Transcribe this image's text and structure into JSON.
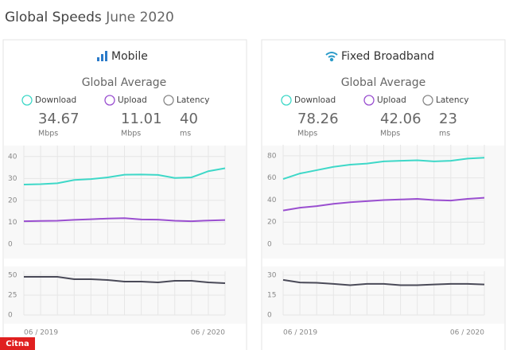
{
  "header": {
    "title": "Global Speeds",
    "subtitle": "June 2020"
  },
  "watermark": "Citna",
  "panels": [
    {
      "title": "Mobile",
      "subtitle": "Global Average",
      "stats": [
        {
          "label": "Download",
          "value": 34.67,
          "unit": "Mbps"
        },
        {
          "label": "Upload",
          "value": 11.01,
          "unit": "Mbps"
        },
        {
          "label": "Latency",
          "value": 40,
          "unit": "ms"
        }
      ]
    },
    {
      "title": "Fixed Broadband",
      "subtitle": "Global Average",
      "stats": [
        {
          "label": "Download",
          "value": 78.26,
          "unit": "Mbps"
        },
        {
          "label": "Upload",
          "value": 42.06,
          "unit": "Mbps"
        },
        {
          "label": "Latency",
          "value": 23,
          "unit": "ms"
        }
      ]
    }
  ],
  "chart_data": [
    {
      "type": "line",
      "ylim": [
        0,
        45
      ],
      "yticks": [
        0,
        10,
        20,
        30,
        40
      ],
      "grid": true,
      "series": [
        {
          "color": "#3ed8c8",
          "values": [
            27.2,
            27.4,
            27.8,
            29.3,
            29.7,
            30.5,
            31.7,
            31.8,
            31.6,
            30.2,
            30.5,
            33.3,
            34.67
          ]
        },
        {
          "color": "#9a4fd0",
          "values": [
            10.5,
            10.6,
            10.7,
            11.1,
            11.4,
            11.7,
            11.9,
            11.3,
            11.2,
            10.7,
            10.5,
            10.8,
            11.01
          ]
        }
      ]
    },
    {
      "type": "line",
      "ylim": [
        0,
        55
      ],
      "yticks": [
        0,
        25,
        50
      ],
      "grid": true,
      "categories": [
        "06 / 2019",
        null,
        null,
        null,
        null,
        null,
        null,
        null,
        null,
        null,
        null,
        null,
        "06 / 2020"
      ],
      "series": [
        {
          "color": "#4a4a58",
          "values": [
            48,
            48,
            48,
            45,
            45,
            44,
            42,
            42,
            41,
            43,
            43,
            41,
            40
          ]
        }
      ]
    },
    {
      "type": "line",
      "ylim": [
        0,
        90
      ],
      "yticks": [
        0,
        20,
        40,
        60,
        80
      ],
      "grid": true,
      "series": [
        {
          "color": "#3ed8c8",
          "values": [
            59,
            64,
            67,
            70,
            72,
            73,
            75,
            75.5,
            76,
            75,
            75.5,
            77.5,
            78.26
          ]
        },
        {
          "color": "#9a4fd0",
          "values": [
            30.5,
            33,
            34.5,
            36.5,
            38,
            39,
            40,
            40.5,
            41,
            40,
            39.5,
            41,
            42.06
          ]
        }
      ]
    },
    {
      "type": "line",
      "ylim": [
        0,
        33
      ],
      "yticks": [
        0,
        15,
        30
      ],
      "grid": true,
      "categories": [
        "06 / 2019",
        null,
        null,
        null,
        null,
        null,
        null,
        null,
        null,
        null,
        null,
        null,
        "06 / 2020"
      ],
      "series": [
        {
          "color": "#4a4a58",
          "values": [
            26.5,
            24.5,
            24.3,
            23.5,
            22.5,
            23.5,
            23.5,
            22.5,
            22.5,
            23,
            23.5,
            23.5,
            23
          ]
        }
      ]
    }
  ]
}
